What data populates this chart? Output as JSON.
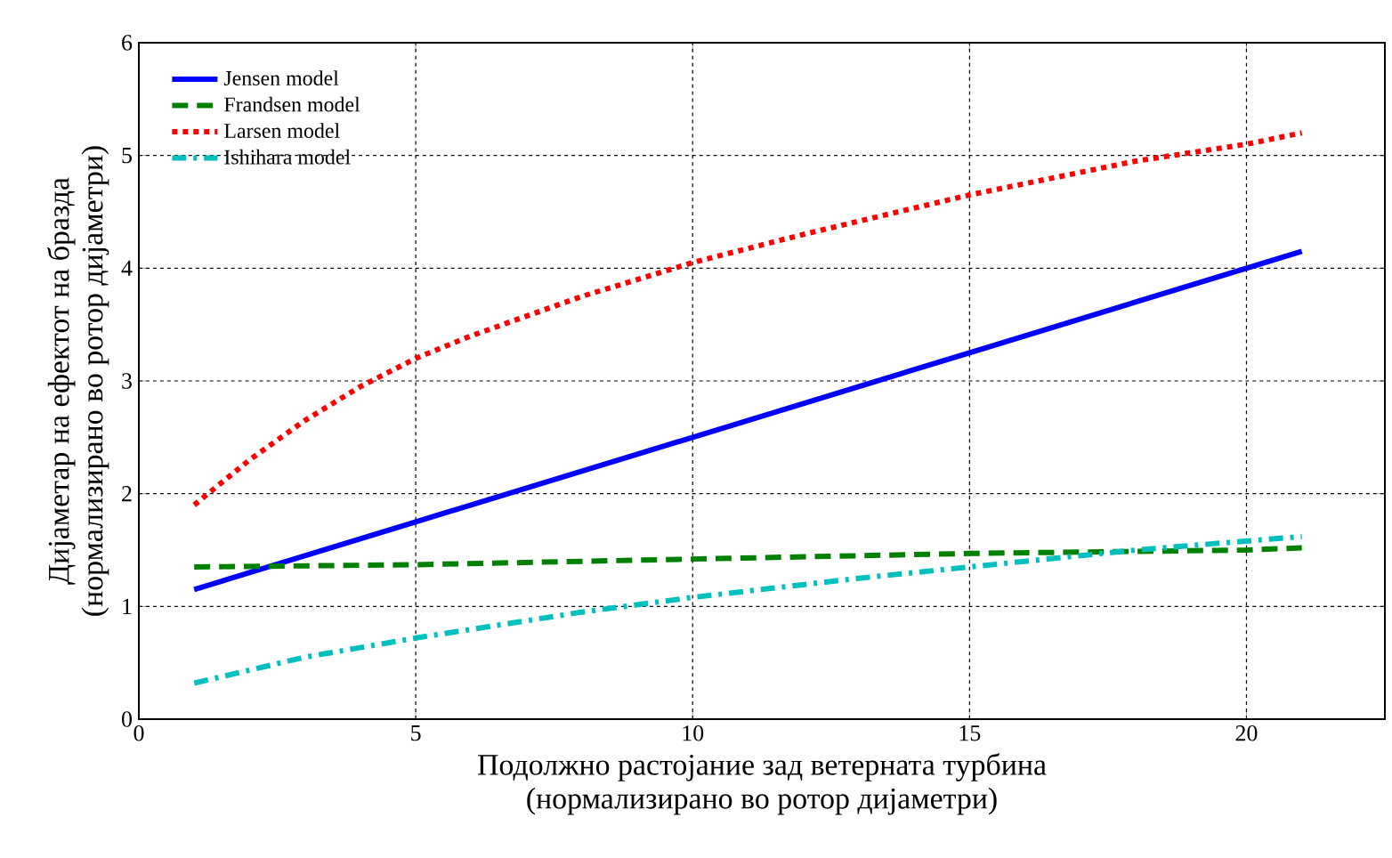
{
  "chart_data": {
    "type": "line",
    "xlabel": "Подолжно растојание зад ветерната турбина\n(нормализирано во ротор дијаметри)",
    "ylabel": "Дијаметар на ефектот на бразда\n(нормализирано во ротор дијаметри)",
    "xlim": [
      0,
      22.5
    ],
    "ylim": [
      0,
      6
    ],
    "xticks": [
      0,
      5,
      10,
      15,
      20
    ],
    "yticks": [
      0,
      1,
      2,
      3,
      4,
      5,
      6
    ],
    "grid": true,
    "legend": "top left",
    "marker": "none",
    "series": [
      {
        "name": "Jensen model",
        "color": "#0000ff",
        "line_style": "solid",
        "x": [
          1,
          5,
          10,
          15,
          20,
          21
        ],
        "values": [
          1.15,
          1.75,
          2.5,
          3.25,
          4.0,
          4.15
        ]
      },
      {
        "name": "Frandsen model",
        "color": "#008000",
        "line_style": "dashed",
        "x": [
          1,
          5,
          10,
          15,
          20,
          21
        ],
        "values": [
          1.35,
          1.37,
          1.42,
          1.47,
          1.5,
          1.52
        ]
      },
      {
        "name": "Larsen model",
        "color": "#ff0000",
        "line_style": "dotted",
        "x": [
          1,
          2,
          3,
          4,
          5,
          6,
          8,
          10,
          12,
          15,
          18,
          20,
          21
        ],
        "values": [
          1.9,
          2.3,
          2.65,
          2.95,
          3.2,
          3.4,
          3.75,
          4.05,
          4.3,
          4.65,
          4.95,
          5.1,
          5.2
        ]
      },
      {
        "name": "Ishihara model",
        "color": "#00bfbf",
        "line_style": "dashdot",
        "x": [
          1,
          3,
          5,
          8,
          10,
          13,
          15,
          18,
          21
        ],
        "values": [
          0.32,
          0.55,
          0.72,
          0.95,
          1.08,
          1.25,
          1.35,
          1.5,
          1.62
        ]
      }
    ]
  }
}
